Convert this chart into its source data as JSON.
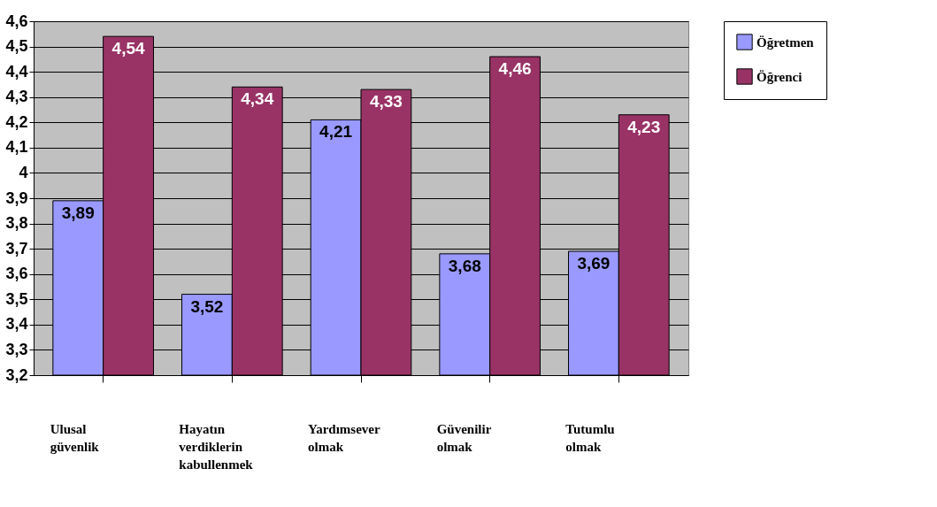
{
  "chart_data": {
    "type": "bar",
    "categories": [
      "Ulusal güvenlik",
      "Hayatın verdiklerin kabullenmek",
      "Yardımsever olmak",
      "Güvenilir olmak",
      "Tutumlu olmak"
    ],
    "series": [
      {
        "name": "Öğretmen",
        "color": "#9999ff",
        "values": [
          3.89,
          3.52,
          4.21,
          3.68,
          3.69
        ],
        "value_labels": [
          "3,89",
          "3,52",
          "4,21",
          "3,68",
          "3,69"
        ]
      },
      {
        "name": "Öğrenci",
        "color": "#993366",
        "values": [
          4.54,
          4.34,
          4.33,
          4.46,
          4.23
        ],
        "value_labels": [
          "4,54",
          "4,34",
          "4,33",
          "4,46",
          "4,23"
        ]
      }
    ],
    "ylim": [
      3.2,
      4.6
    ],
    "yticks": [
      {
        "value": 3.2,
        "label": "3,2"
      },
      {
        "value": 3.3,
        "label": "3,3"
      },
      {
        "value": 3.4,
        "label": "3,4"
      },
      {
        "value": 3.5,
        "label": "3,5"
      },
      {
        "value": 3.6,
        "label": "3,6"
      },
      {
        "value": 3.7,
        "label": "3,7"
      },
      {
        "value": 3.8,
        "label": "3,8"
      },
      {
        "value": 3.9,
        "label": "3,9"
      },
      {
        "value": 4,
        "label": "4"
      },
      {
        "value": 4.1,
        "label": "4,1"
      },
      {
        "value": 4.2,
        "label": "4,2"
      },
      {
        "value": 4.3,
        "label": "4,3"
      },
      {
        "value": 4.4,
        "label": "4,4"
      },
      {
        "value": 4.5,
        "label": "4,5"
      },
      {
        "value": 4.6,
        "label": "4,6"
      }
    ],
    "grid": "y",
    "legend": "right"
  }
}
